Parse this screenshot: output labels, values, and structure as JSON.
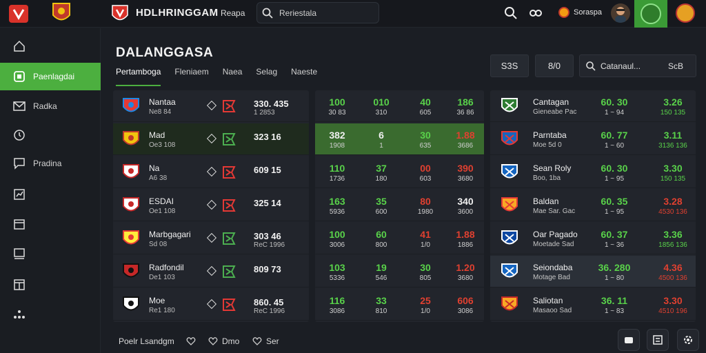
{
  "header": {
    "brand": "HDLHRINGGAM",
    "nav_link": "Reapa",
    "search_text": "Reriestala",
    "balance": "Soraspa"
  },
  "sidebar": {
    "items": [
      {
        "label": "",
        "icon": "home-icon"
      },
      {
        "label": "Paenlagdai",
        "icon": "live-icon",
        "active": true
      },
      {
        "label": "Radka",
        "icon": "mail-icon"
      },
      {
        "label": "",
        "icon": "clock-icon"
      },
      {
        "label": "Pradina",
        "icon": "chat-icon"
      },
      {
        "label": "",
        "icon": "chart-icon"
      },
      {
        "label": "",
        "icon": "calendar-icon"
      },
      {
        "label": "",
        "icon": "monitor-icon"
      },
      {
        "label": "",
        "icon": "grid-icon"
      },
      {
        "label": "",
        "icon": "more-icon"
      }
    ]
  },
  "main": {
    "title": "DALANGGASA",
    "tabs": [
      "Pertamboga",
      "Fleniaem",
      "Naea",
      "Selag",
      "Naeste"
    ],
    "btn_a": "S3S",
    "btn_b": "8/0",
    "search_text": "Catanaul...",
    "search_sub": "ScB"
  },
  "matches": [
    {
      "team": "Nantaa",
      "sub": "Ne8 84",
      "score": "330. 435",
      "score_sub": "1 2853",
      "o1": "100",
      "s1": "30 83",
      "o2": "010",
      "s2": "310",
      "o3": "40",
      "s3": "605",
      "o4": "186",
      "s4": "36 86",
      "c1": "g",
      "c2": "g",
      "c3": "g",
      "c4": "g"
    },
    {
      "team": "Mad",
      "sub": "Oe3 108",
      "score": "323 16",
      "score_sub": "",
      "o1": "382",
      "s1": "1908",
      "o2": "6",
      "s2": "1",
      "o3": "30",
      "s3": "635",
      "o4": "1.88",
      "s4": "3686",
      "c1": "w",
      "c2": "w",
      "c3": "g",
      "c4": "r",
      "hl": true
    },
    {
      "team": "Na",
      "sub": "A6 38",
      "score": "609 15",
      "score_sub": "",
      "o1": "110",
      "s1": "1736",
      "o2": "37",
      "s2": "180",
      "o3": "00",
      "s3": "603",
      "o4": "390",
      "s4": "3680",
      "c1": "g",
      "c2": "g",
      "c3": "r",
      "c4": "r"
    },
    {
      "team": "ESDAI",
      "sub": "Oe1 108",
      "score": "325 14",
      "score_sub": "",
      "o1": "163",
      "s1": "5936",
      "o2": "35",
      "s2": "600",
      "o3": "80",
      "s3": "1980",
      "o4": "340",
      "s4": "3600",
      "c1": "g",
      "c2": "g",
      "c3": "r",
      "c4": "w"
    },
    {
      "team": "Marbgagari",
      "sub": "Sd 08",
      "score": "303 46",
      "score_sub": "ReC 1996",
      "o1": "100",
      "s1": "3006",
      "o2": "60",
      "s2": "800",
      "o3": "41",
      "s3": "1/0",
      "o4": "1.88",
      "s4": "1886",
      "c1": "g",
      "c2": "g",
      "c3": "r",
      "c4": "r"
    },
    {
      "team": "Radfondil",
      "sub": "De1 103",
      "score": "809 73",
      "score_sub": "",
      "o1": "103",
      "s1": "5336",
      "o2": "19",
      "s2": "546",
      "o3": "30",
      "s3": "805",
      "o4": "1.20",
      "s4": "3680",
      "c1": "g",
      "c2": "g",
      "c3": "g",
      "c4": "r"
    },
    {
      "team": "Moe",
      "sub": "Re1 180",
      "score": "860. 45",
      "score_sub": "ReC 1996",
      "o1": "116",
      "s1": "3086",
      "o2": "33",
      "s2": "810",
      "o3": "25",
      "s3": "1/0",
      "o4": "606",
      "s4": "3086",
      "c1": "g",
      "c2": "g",
      "c3": "r",
      "c4": "r"
    }
  ],
  "right_list": [
    {
      "name": "Cantagan",
      "sub": "Gieneabe Pac",
      "v1": "60. 30",
      "v1s": "1  ~ 94",
      "v2": "3.26",
      "v2s": "150 135",
      "c2": "g"
    },
    {
      "name": "Parntaba",
      "sub": "Moe 5d 0",
      "v1": "60. 77",
      "v1s": "1  ~ 60",
      "v2": "3.11",
      "v2s": "3136 136",
      "c2": "g"
    },
    {
      "name": "Sean Roly",
      "sub": "Boo, 1ba",
      "v1": "60. 30",
      "v1s": "1  ~ 95",
      "v2": "3.30",
      "v2s": "150 135",
      "c2": "g"
    },
    {
      "name": "Baldan",
      "sub": "Mae Sar. Gac",
      "v1": "60. 35",
      "v1s": "1  ~ 95",
      "v2": "3.28",
      "v2s": "4530 136",
      "c2": "r"
    },
    {
      "name": "Oar Pagado",
      "sub": "Moetade Sad",
      "v1": "60. 37",
      "v1s": "1  ~ 36",
      "v2": "3.36",
      "v2s": "1856 136",
      "c2": "g"
    },
    {
      "name": "Seiondaba",
      "sub": "Motage Bad",
      "v1": "36. 280",
      "v1s": "1  ~ 80",
      "v2": "4.36",
      "v2s": "4500 136",
      "c2": "r"
    },
    {
      "name": "Saliotan",
      "sub": "Masaoo Sad",
      "v1": "36. 11",
      "v1s": "1  ~ 83",
      "v2": "3.30",
      "v2s": "4510 196",
      "c2": "r"
    }
  ],
  "bottom": {
    "item1": "Poelr Lsandgm",
    "item2": "Dmo",
    "item3": "Ser"
  }
}
